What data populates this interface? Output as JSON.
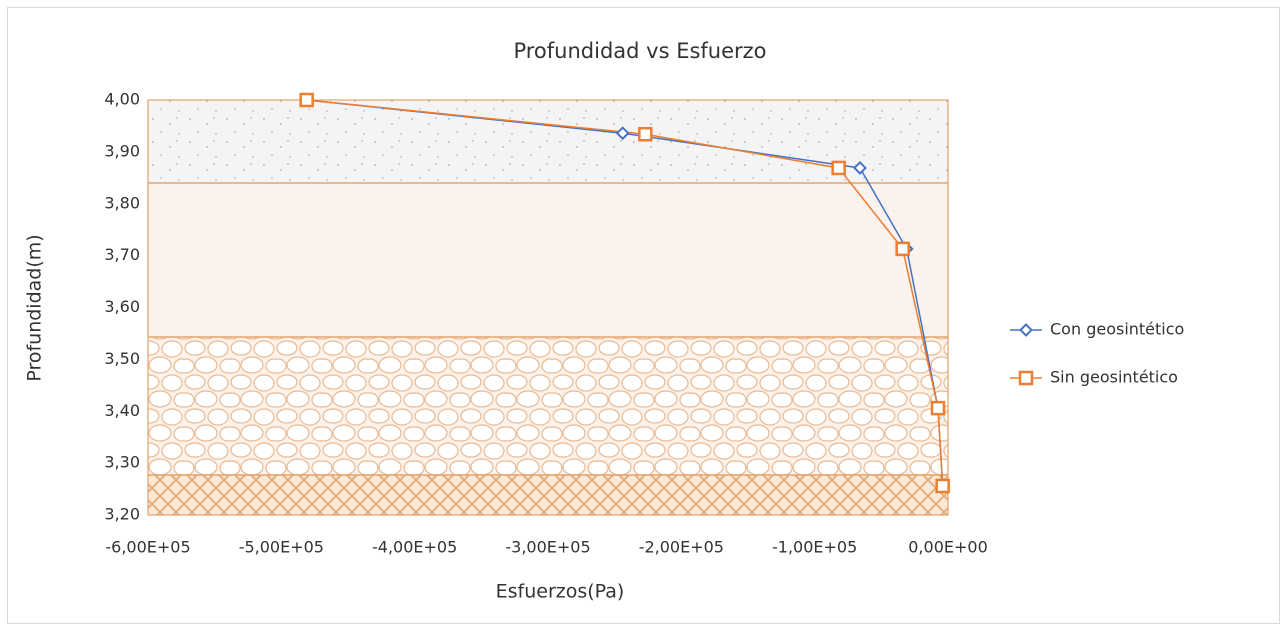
{
  "chart_data": {
    "type": "line",
    "title": "Profundidad vs Esfuerzo",
    "x_label": "Esfuerzos(Pa)",
    "y_label": "Profundidad(m)",
    "series": [
      {
        "name": "Con geosintético",
        "color": "#4472c4",
        "marker": "diamond",
        "x": [
          -481000,
          -244000,
          -66000,
          -31000,
          -7500,
          -4000
        ],
        "values": [
          4.0,
          3.936,
          3.869,
          3.713,
          3.406,
          3.256
        ]
      },
      {
        "name": "Sin geosintético",
        "color": "#ed7d31",
        "marker": "square",
        "x": [
          -481000,
          -227000,
          -82000,
          -34000,
          -7500,
          -4000
        ],
        "values": [
          4.0,
          3.934,
          3.869,
          3.713,
          3.406,
          3.256
        ]
      }
    ],
    "xlim": [
      -600000,
      0
    ],
    "xticks": [
      {
        "value": -600000,
        "label": "-6,00E+05"
      },
      {
        "value": -500000,
        "label": "-5,00E+05"
      },
      {
        "value": -400000,
        "label": "-4,00E+05"
      },
      {
        "value": -300000,
        "label": "-3,00E+05"
      },
      {
        "value": -200000,
        "label": "-2,00E+05"
      },
      {
        "value": -100000,
        "label": "-1,00E+05"
      },
      {
        "value": 0,
        "label": "0,00E+00"
      }
    ],
    "ylim": [
      3.2,
      4.0
    ],
    "yticks": [
      {
        "value": 3.2,
        "label": "3,20"
      },
      {
        "value": 3.3,
        "label": "3,30"
      },
      {
        "value": 3.4,
        "label": "3,40"
      },
      {
        "value": 3.5,
        "label": "3,50"
      },
      {
        "value": 3.6,
        "label": "3,60"
      },
      {
        "value": 3.7,
        "label": "3,70"
      },
      {
        "value": 3.8,
        "label": "3,80"
      },
      {
        "value": 3.9,
        "label": "3,90"
      },
      {
        "value": 4.0,
        "label": "4,00"
      }
    ],
    "legend": "right"
  }
}
